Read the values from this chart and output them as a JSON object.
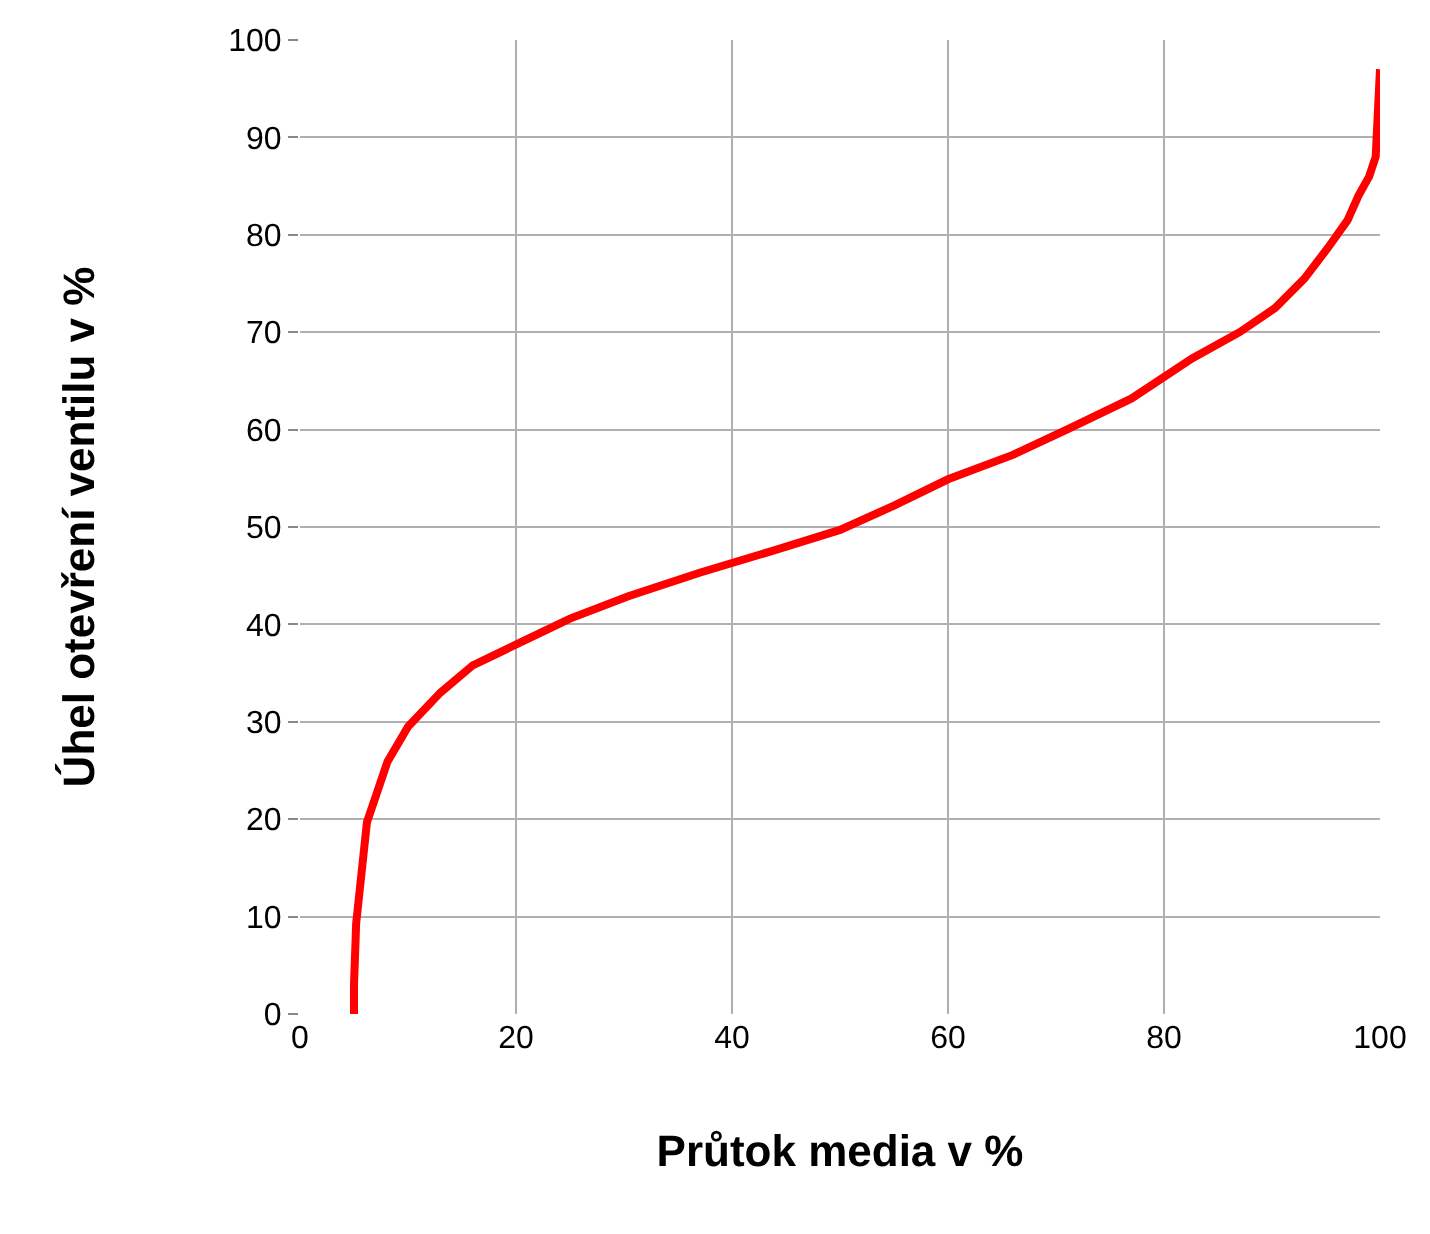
{
  "chart_data": {
    "type": "line",
    "xlabel": "Průtok media v %",
    "ylabel": "Úhel otevření ventilu v %",
    "xlim": [
      0,
      100
    ],
    "ylim": [
      0,
      100
    ],
    "xticks": [
      0,
      20,
      40,
      60,
      80,
      100
    ],
    "yticks": [
      0,
      10,
      20,
      30,
      40,
      50,
      60,
      70,
      80,
      90,
      100
    ],
    "grid": true,
    "marker": "none",
    "line_style": "solid",
    "series": [
      {
        "color": "#ff0000",
        "x": [
          5,
          5,
          5.2,
          6.2,
          8.1,
          10,
          13,
          16,
          20.7,
          25,
          30.4,
          37,
          43.9,
          50,
          55,
          60,
          66,
          71,
          77,
          82.6,
          87,
          90.3,
          93,
          95.2,
          97,
          98,
          99,
          99.6,
          100
        ],
        "values": [
          0,
          3,
          9.3,
          19.7,
          25.9,
          29.5,
          33,
          35.8,
          38.3,
          40.6,
          42.9,
          45.3,
          47.6,
          49.7,
          52.2,
          54.9,
          57.4,
          60,
          63.2,
          67.3,
          70,
          72.5,
          75.5,
          78.7,
          81.5,
          84,
          86,
          88,
          97
        ]
      }
    ]
  }
}
